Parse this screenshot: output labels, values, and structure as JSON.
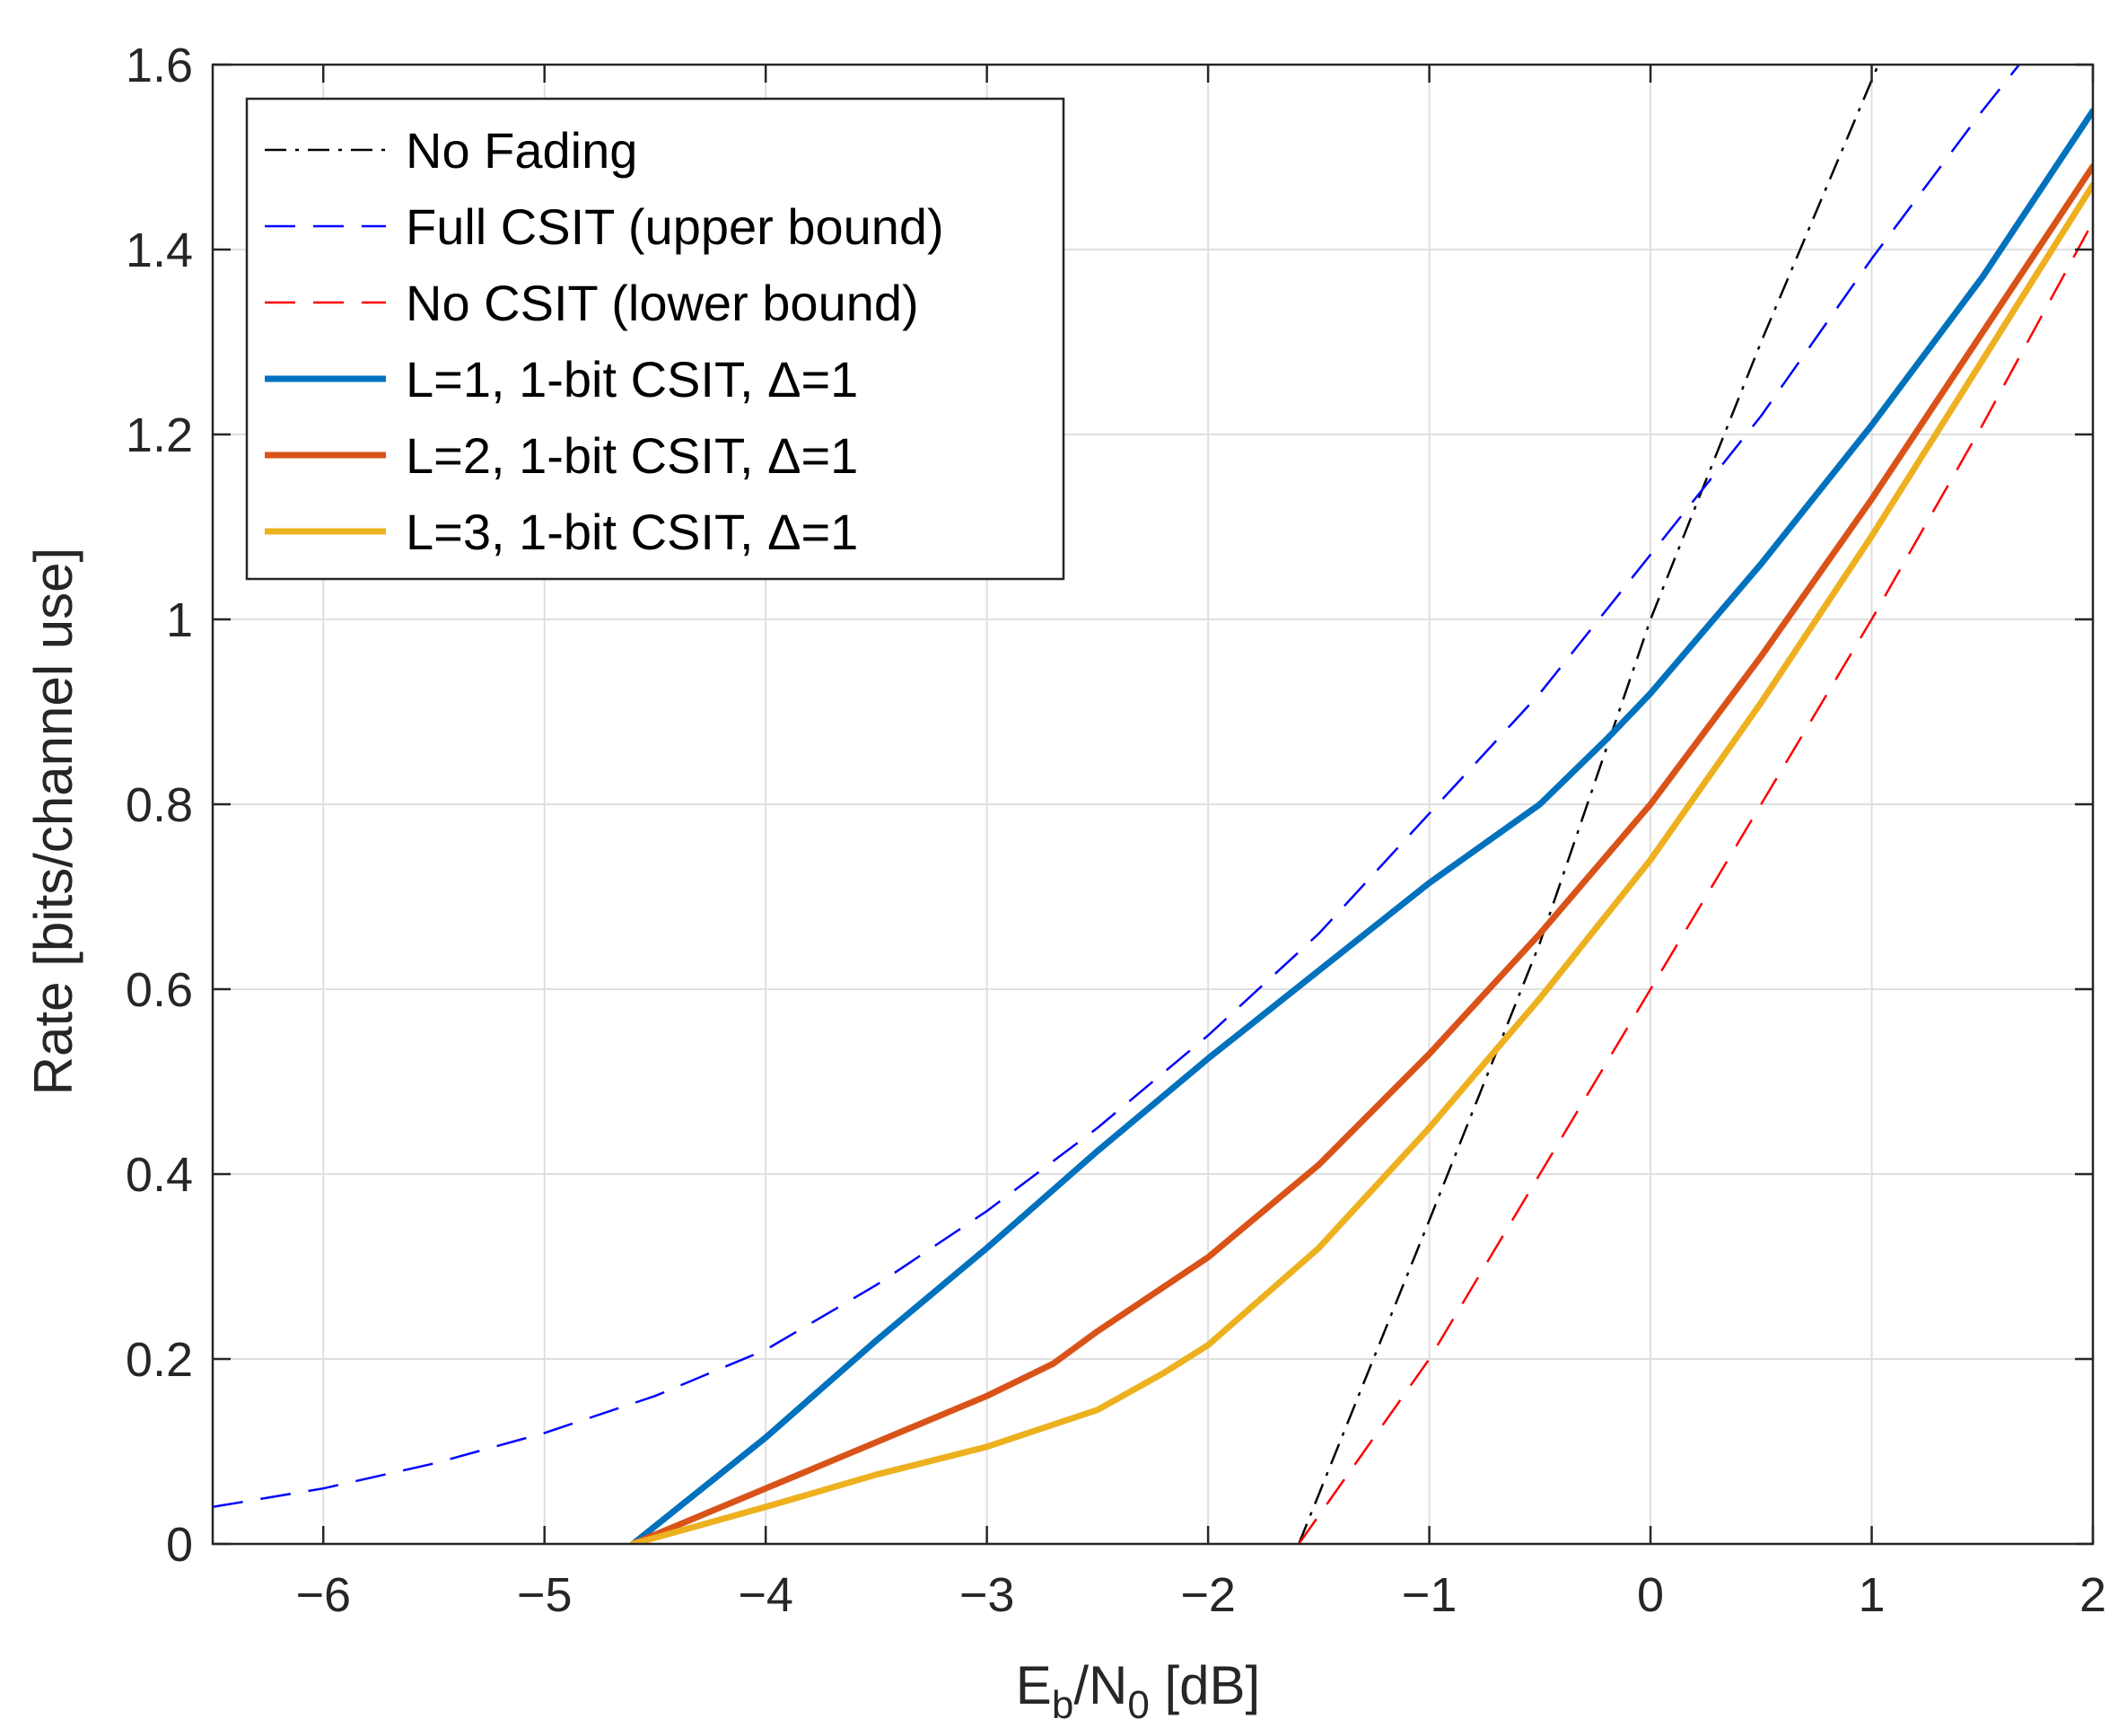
{
  "chart_data": {
    "type": "line",
    "title": "",
    "xlabel": {
      "main": "E",
      "sub1": "b",
      "mid": "/N",
      "sub2": "0",
      "tail": " [dB]"
    },
    "ylabel": "Rate [bits/channel use]",
    "xlim": [
      -6.5,
      2
    ],
    "ylim": [
      0,
      1.6
    ],
    "grid": true,
    "legend_position": "top-left",
    "x_ticks": [
      -6,
      -5,
      -4,
      -3,
      -2,
      -1,
      0,
      1,
      2
    ],
    "x_tick_labels": [
      "−6",
      "−5",
      "−4",
      "−3",
      "−2",
      "−1",
      "0",
      "1",
      "2"
    ],
    "y_ticks": [
      0,
      0.2,
      0.4,
      0.6,
      0.8,
      1,
      1.2,
      1.4,
      1.6
    ],
    "y_tick_labels": [
      "0",
      "0.2",
      "0.4",
      "0.6",
      "0.8",
      "1",
      "1.2",
      "1.4",
      "1.6"
    ],
    "series": [
      {
        "name": "No Fading",
        "color": "#000000",
        "style": "dashdot",
        "width": 2.5,
        "x": [
          -1.59,
          -1.0,
          -0.5,
          0.0,
          0.5,
          1.03
        ],
        "y": [
          0.0,
          0.35,
          0.65,
          1.0,
          1.3,
          1.6
        ]
      },
      {
        "name": "Full CSIT (upper bound)",
        "color": "#0000ff",
        "style": "dashed",
        "width": 2.5,
        "x": [
          -6.5,
          -6.0,
          -5.5,
          -5.0,
          -4.5,
          -4.0,
          -3.5,
          -3.0,
          -2.5,
          -2.0,
          -1.5,
          -1.0,
          -0.5,
          0.0,
          0.5,
          1.0,
          1.5,
          1.7
        ],
        "y": [
          0.04,
          0.06,
          0.087,
          0.12,
          0.16,
          0.21,
          0.28,
          0.36,
          0.45,
          0.55,
          0.66,
          0.79,
          0.92,
          1.07,
          1.22,
          1.39,
          1.55,
          1.61
        ]
      },
      {
        "name": "No CSIT (lower bound)",
        "color": "#ff0000",
        "style": "dashed",
        "width": 2.5,
        "x": [
          -1.59,
          -1.0,
          -0.5,
          0.0,
          0.5,
          1.0,
          1.5,
          2.0
        ],
        "y": [
          0.0,
          0.2,
          0.4,
          0.6,
          0.8,
          1.0,
          1.21,
          1.43
        ]
      },
      {
        "name": "L=1, 1-bit CSIT, Δ=1",
        "color": "#0072bd",
        "style": "solid",
        "width": 7,
        "x": [
          -4.6,
          -4.0,
          -3.5,
          -3.0,
          -2.5,
          -2.0,
          -1.5,
          -1.0,
          -0.5,
          -0.2,
          0.0,
          0.5,
          1.0,
          1.5,
          2.0
        ],
        "y": [
          0.0,
          0.115,
          0.22,
          0.32,
          0.425,
          0.525,
          0.62,
          0.715,
          0.8,
          0.87,
          0.92,
          1.06,
          1.21,
          1.37,
          1.55
        ]
      },
      {
        "name": "L=2, 1-bit CSIT, Δ=1",
        "color": "#d95319",
        "style": "solid",
        "width": 7,
        "x": [
          -4.6,
          -4.0,
          -3.5,
          -3.0,
          -2.7,
          -2.5,
          -2.0,
          -1.5,
          -1.0,
          -0.5,
          0.0,
          0.5,
          1.0,
          1.5,
          2.0
        ],
        "y": [
          0.0,
          0.06,
          0.11,
          0.16,
          0.195,
          0.23,
          0.31,
          0.41,
          0.53,
          0.66,
          0.8,
          0.96,
          1.13,
          1.31,
          1.49
        ]
      },
      {
        "name": "L=3, 1-bit CSIT, Δ=1",
        "color": "#edb120",
        "style": "solid",
        "width": 7,
        "x": [
          -4.6,
          -4.0,
          -3.5,
          -3.0,
          -2.5,
          -2.2,
          -2.0,
          -1.5,
          -1.0,
          -0.5,
          0.0,
          0.5,
          1.0,
          1.5,
          2.0
        ],
        "y": [
          0.0,
          0.04,
          0.075,
          0.105,
          0.145,
          0.185,
          0.215,
          0.32,
          0.45,
          0.59,
          0.74,
          0.91,
          1.09,
          1.28,
          1.47
        ]
      }
    ]
  }
}
